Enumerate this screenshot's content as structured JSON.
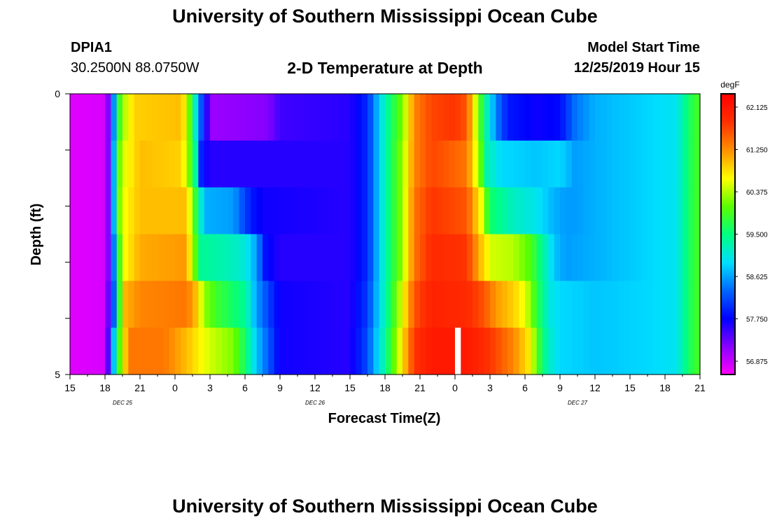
{
  "header": {
    "title": "University of Southern Mississippi Ocean Cube",
    "station_id": "DPIA1",
    "station_coords": "30.2500N 88.0750W",
    "model_start_label": "Model Start Time",
    "model_start_value": "12/25/2019 Hour 15"
  },
  "footer": {
    "title": "University of Southern Mississippi Ocean Cube"
  },
  "chart_data": {
    "type": "heatmap",
    "title": "2-D Temperature at Depth",
    "xlabel": "Forecast Time(Z)",
    "ylabel": "Depth (ft)",
    "x_tick_labels": [
      "15",
      "18",
      "21",
      "0",
      "3",
      "6",
      "9",
      "12",
      "15",
      "18",
      "21",
      "0",
      "3",
      "6",
      "9",
      "12",
      "15",
      "18",
      "21"
    ],
    "x_ticks_hours": [
      0,
      3,
      6,
      9,
      12,
      15,
      18,
      21,
      24,
      27,
      30,
      33,
      36,
      39,
      42,
      45,
      48,
      51,
      54
    ],
    "date_labels": [
      {
        "label": "DEC 25",
        "hour": 4.5
      },
      {
        "label": "DEC 26",
        "hour": 21
      },
      {
        "label": "DEC 27",
        "hour": 43.5
      }
    ],
    "y_tick_labels": [
      "0",
      "5"
    ],
    "ylim": [
      0,
      5
    ],
    "xlim_hours": [
      0,
      54
    ],
    "colorbar": {
      "unit": "degF",
      "tick_labels": [
        "62.125",
        "61.250",
        "60.375",
        "59.500",
        "58.625",
        "57.750",
        "56.875"
      ],
      "tick_values": [
        62.125,
        61.25,
        60.375,
        59.5,
        58.625,
        57.75,
        56.875
      ],
      "range": [
        56.6,
        62.4
      ],
      "colors": [
        "#ff00ff",
        "#8a00ff",
        "#0000ff",
        "#0066ff",
        "#00dfff",
        "#00ff80",
        "#5aff00",
        "#ffff00",
        "#ff9000",
        "#ff3000",
        "#ff0000"
      ]
    },
    "depth_rows": [
      0,
      1,
      2,
      3,
      4,
      5
    ],
    "row_profiles": [
      [
        [
          0,
          56.75
        ],
        [
          3,
          56.8
        ],
        [
          3.5,
          57.6
        ],
        [
          4,
          59.5
        ],
        [
          4.5,
          60.3
        ],
        [
          5.5,
          60.9
        ],
        [
          9.5,
          61.0
        ],
        [
          10,
          60.6
        ],
        [
          10.5,
          59.6
        ],
        [
          11.2,
          58.3
        ],
        [
          11.6,
          57.7
        ],
        [
          12.2,
          57.1
        ],
        [
          17,
          57.2
        ],
        [
          18,
          57.5
        ],
        [
          24,
          57.6
        ],
        [
          25.5,
          58.0
        ],
        [
          27,
          59.3
        ],
        [
          28.5,
          60.2
        ],
        [
          29.5,
          61.3
        ],
        [
          31,
          61.7
        ],
        [
          33,
          61.8
        ],
        [
          34,
          61.6
        ],
        [
          35,
          60.2
        ],
        [
          35.5,
          59.5
        ],
        [
          36.5,
          58.5
        ],
        [
          37.5,
          57.9
        ],
        [
          40,
          57.7
        ],
        [
          42,
          57.8
        ],
        [
          43.3,
          58.4
        ],
        [
          45,
          58.7
        ],
        [
          50,
          58.9
        ],
        [
          52,
          59.0
        ],
        [
          53,
          59.6
        ],
        [
          54,
          60.0
        ]
      ],
      [
        [
          0,
          56.75
        ],
        [
          3,
          56.8
        ],
        [
          3.5,
          57.6
        ],
        [
          4,
          59.8
        ],
        [
          4.5,
          60.5
        ],
        [
          6,
          61.0
        ],
        [
          9.5,
          60.9
        ],
        [
          10,
          60.5
        ],
        [
          10.8,
          59.3
        ],
        [
          11.3,
          57.8
        ],
        [
          12,
          57.6
        ],
        [
          17,
          57.6
        ],
        [
          24,
          57.6
        ],
        [
          25.5,
          58.0
        ],
        [
          27,
          59.3
        ],
        [
          28.5,
          60.3
        ],
        [
          29.5,
          61.3
        ],
        [
          31,
          61.7
        ],
        [
          34,
          61.4
        ],
        [
          35,
          60.4
        ],
        [
          35.7,
          59.3
        ],
        [
          37,
          58.9
        ],
        [
          40,
          58.8
        ],
        [
          42,
          58.9
        ],
        [
          43.3,
          58.6
        ],
        [
          45,
          58.7
        ],
        [
          50,
          58.9
        ],
        [
          52,
          59.0
        ],
        [
          53,
          59.6
        ],
        [
          54,
          60.0
        ]
      ],
      [
        [
          0,
          56.75
        ],
        [
          3,
          56.8
        ],
        [
          3.5,
          57.6
        ],
        [
          4,
          59.8
        ],
        [
          4.5,
          60.6
        ],
        [
          6,
          61.0
        ],
        [
          10,
          61.0
        ],
        [
          10.5,
          60.2
        ],
        [
          11,
          59.5
        ],
        [
          11.5,
          58.7
        ],
        [
          14,
          58.6
        ],
        [
          15.5,
          57.9
        ],
        [
          16.5,
          57.7
        ],
        [
          24,
          57.6
        ],
        [
          25.5,
          58.0
        ],
        [
          27,
          59.3
        ],
        [
          28.5,
          60.3
        ],
        [
          29.5,
          61.4
        ],
        [
          31,
          61.8
        ],
        [
          34,
          61.6
        ],
        [
          35.2,
          60.7
        ],
        [
          36,
          59.6
        ],
        [
          38,
          59.2
        ],
        [
          40,
          59.0
        ],
        [
          41.5,
          58.7
        ],
        [
          42.5,
          58.6
        ],
        [
          43.3,
          58.6
        ],
        [
          45,
          58.7
        ],
        [
          50,
          58.9
        ],
        [
          52,
          59.0
        ],
        [
          53,
          59.6
        ],
        [
          54,
          60.0
        ]
      ],
      [
        [
          0,
          56.75
        ],
        [
          3,
          56.8
        ],
        [
          3.5,
          57.6
        ],
        [
          4,
          59.3
        ],
        [
          4.5,
          60.6
        ],
        [
          6,
          61.1
        ],
        [
          10,
          61.2
        ],
        [
          10.5,
          60.4
        ],
        [
          11.2,
          59.4
        ],
        [
          13,
          59.3
        ],
        [
          15,
          59.1
        ],
        [
          16,
          58.6
        ],
        [
          16.8,
          57.8
        ],
        [
          18,
          57.6
        ],
        [
          24,
          57.6
        ],
        [
          25.5,
          58.0
        ],
        [
          27,
          59.3
        ],
        [
          28.5,
          60.3
        ],
        [
          29.5,
          61.4
        ],
        [
          31,
          61.9
        ],
        [
          34,
          61.8
        ],
        [
          35.2,
          61.0
        ],
        [
          36.2,
          60.5
        ],
        [
          38,
          60.4
        ],
        [
          39.5,
          60.0
        ],
        [
          40.5,
          59.4
        ],
        [
          41.5,
          58.8
        ],
        [
          42.5,
          58.6
        ],
        [
          45,
          58.7
        ],
        [
          50,
          58.9
        ],
        [
          52,
          59.0
        ],
        [
          53,
          59.6
        ],
        [
          54,
          60.0
        ]
      ],
      [
        [
          0,
          56.75
        ],
        [
          3,
          56.8
        ],
        [
          3.5,
          57.8
        ],
        [
          4,
          58.8
        ],
        [
          4.5,
          61.0
        ],
        [
          6,
          61.3
        ],
        [
          10,
          61.4
        ],
        [
          10.8,
          61.0
        ],
        [
          11.5,
          60.3
        ],
        [
          12.5,
          59.9
        ],
        [
          15,
          59.4
        ],
        [
          16,
          58.6
        ],
        [
          17.3,
          58.0
        ],
        [
          18,
          57.7
        ],
        [
          24,
          57.6
        ],
        [
          25.5,
          58.1
        ],
        [
          27,
          59.3
        ],
        [
          28.5,
          60.6
        ],
        [
          29.5,
          61.6
        ],
        [
          31,
          62.0
        ],
        [
          34,
          61.9
        ],
        [
          35.5,
          61.6
        ],
        [
          36.5,
          61.2
        ],
        [
          38,
          60.9
        ],
        [
          39,
          60.6
        ],
        [
          40,
          59.8
        ],
        [
          41,
          59.1
        ],
        [
          42,
          58.9
        ],
        [
          45,
          58.8
        ],
        [
          50,
          58.9
        ],
        [
          52,
          59.0
        ],
        [
          53,
          59.6
        ],
        [
          54,
          60.0
        ]
      ],
      [
        [
          0,
          56.75
        ],
        [
          3,
          56.8
        ],
        [
          3.5,
          58.0
        ],
        [
          4,
          59.6
        ],
        [
          5,
          61.4
        ],
        [
          8,
          61.4
        ],
        [
          10,
          61.0
        ],
        [
          12,
          60.5
        ],
        [
          14,
          60.2
        ],
        [
          15,
          59.6
        ],
        [
          16,
          58.8
        ],
        [
          17.5,
          58.0
        ],
        [
          18,
          57.7
        ],
        [
          24,
          57.6
        ],
        [
          25.5,
          58.2
        ],
        [
          27,
          59.4
        ],
        [
          28.5,
          60.8
        ],
        [
          29.5,
          61.8
        ],
        [
          31,
          62.1
        ],
        [
          34,
          62.1
        ],
        [
          36,
          61.8
        ],
        [
          38,
          61.3
        ],
        [
          39.5,
          60.7
        ],
        [
          40,
          60.0
        ],
        [
          41,
          59.2
        ],
        [
          42,
          58.9
        ],
        [
          45,
          58.8
        ],
        [
          50,
          58.9
        ],
        [
          52,
          59.0
        ],
        [
          53,
          59.6
        ],
        [
          54,
          60.0
        ]
      ]
    ],
    "missing_cells": [
      {
        "hour": 33,
        "depth_row": 5
      }
    ]
  }
}
